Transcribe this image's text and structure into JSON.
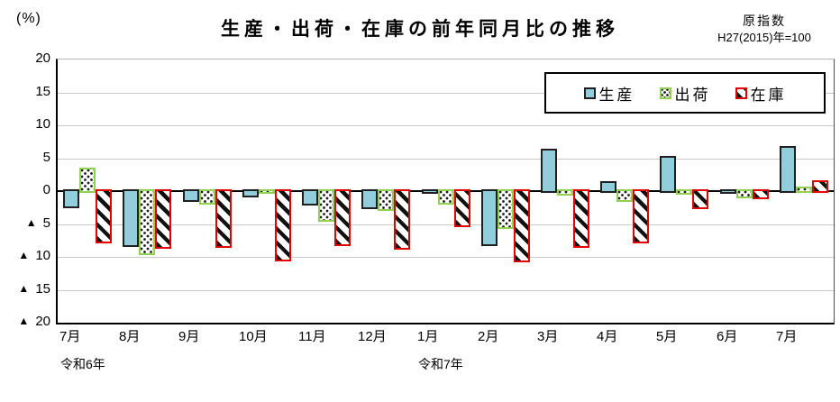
{
  "title": "生産・出荷・在庫の前年同月比の推移",
  "unit_label": "(%)",
  "index_note": {
    "line1": "原指数",
    "line2": "H27(2015)年=100"
  },
  "legend": {
    "position": "top-right-inside",
    "items": [
      {
        "label": "生産",
        "style": "solid-blue"
      },
      {
        "label": "出荷",
        "style": "dotted-green"
      },
      {
        "label": "在庫",
        "style": "hatched-red"
      }
    ]
  },
  "y_axis": {
    "max": 20,
    "min": -20,
    "step": 5,
    "negative_marker": "▲",
    "ticks": [
      {
        "marker": "",
        "label": "20"
      },
      {
        "marker": "",
        "label": "15"
      },
      {
        "marker": "",
        "label": "10"
      },
      {
        "marker": "",
        "label": "5"
      },
      {
        "marker": "",
        "label": "0"
      },
      {
        "marker": "▲",
        "label": "5"
      },
      {
        "marker": "▲",
        "label": "10"
      },
      {
        "marker": "▲",
        "label": "15"
      },
      {
        "marker": "▲",
        "label": "20"
      }
    ]
  },
  "x_axis": {
    "era_labels": [
      {
        "label": "令和6年",
        "month_index": 0
      },
      {
        "label": "令和7年",
        "month_index": 6
      }
    ]
  },
  "colors": {
    "production_fill": "#92cddc",
    "production_border": "#1f1f1f",
    "shipment_border": "#92d050",
    "inventory_border": "#e00000",
    "gridline": "#c9c9c9",
    "zero_line": "#000000"
  },
  "chart_data": {
    "type": "bar",
    "title": "生産・出荷・在庫の前年同月比の推移",
    "ylabel": "(%)",
    "ylim": [
      -20,
      20
    ],
    "ytick_step": 5,
    "grid": true,
    "legend_position": "top-right-inside",
    "categories": [
      "7月",
      "8月",
      "9月",
      "10月",
      "11月",
      "12月",
      "1月",
      "2月",
      "3月",
      "4月",
      "5月",
      "6月",
      "7月"
    ],
    "series": [
      {
        "name": "生産",
        "style": "solid",
        "values": [
          -2.6,
          -8.5,
          -1.7,
          -1.0,
          -2.2,
          -2.8,
          -0.4,
          -8.3,
          6.4,
          1.5,
          5.4,
          -0.3,
          6.8
        ]
      },
      {
        "name": "出荷",
        "style": "dotted",
        "values": [
          3.5,
          -9.7,
          -2.0,
          -0.3,
          -4.6,
          -3.0,
          -2.1,
          -5.7,
          -0.7,
          -1.7,
          -0.5,
          -1.1,
          0.7
        ]
      },
      {
        "name": "在庫",
        "style": "hatched",
        "values": [
          -7.9,
          -8.8,
          -8.6,
          -10.7,
          -8.4,
          -8.9,
          -5.5,
          -10.8,
          -8.6,
          -7.9,
          -2.7,
          -1.2,
          1.7
        ]
      }
    ]
  }
}
